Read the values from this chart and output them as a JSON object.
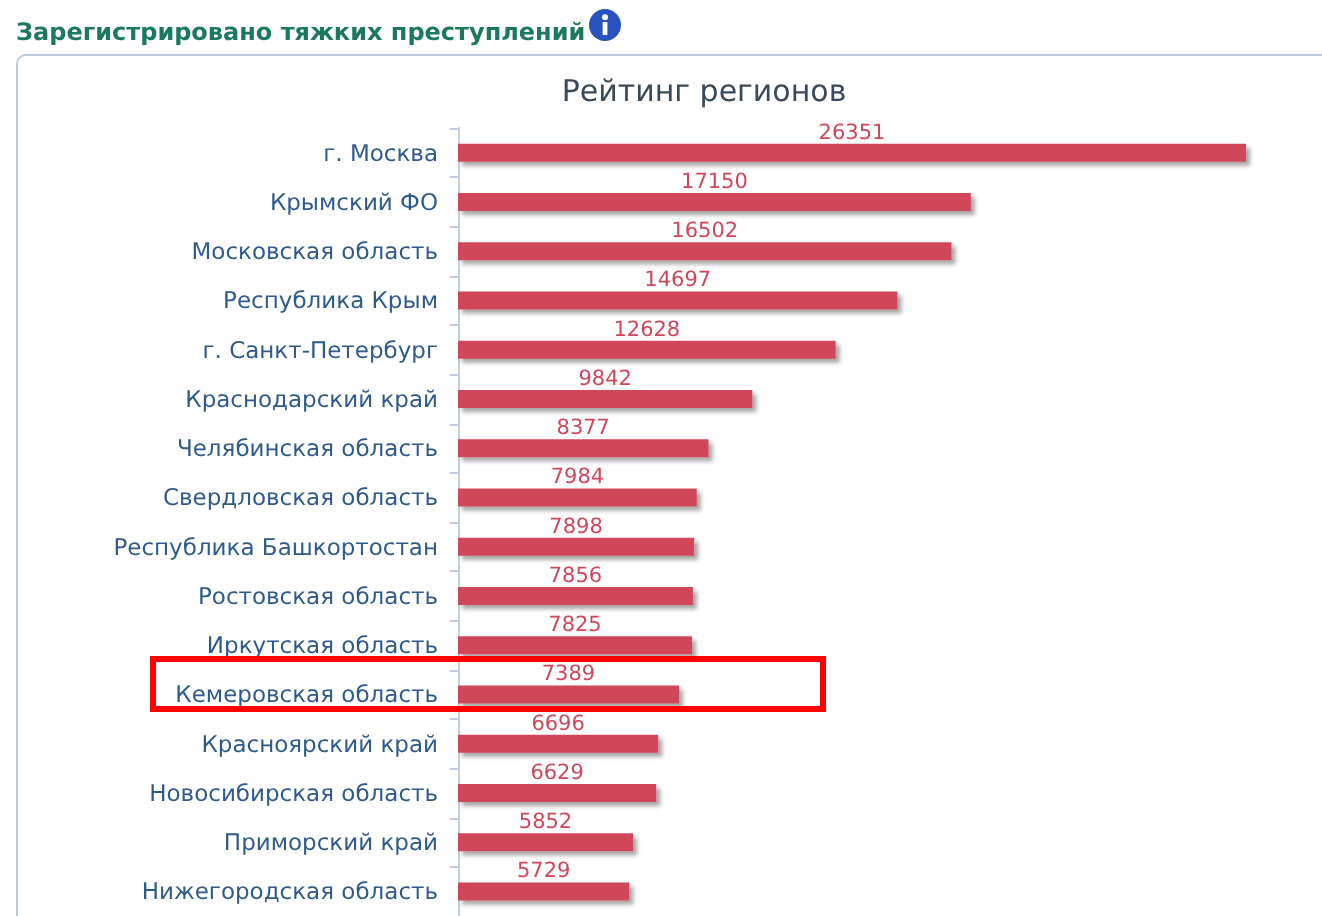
{
  "chart_data": {
    "type": "bar",
    "orientation": "horizontal",
    "title": "Зарегистрировано тяжких преступлений",
    "subtitle": "Рейтинг регионов",
    "categories": [
      "г. Москва",
      "Крымский ФО",
      "Московская область",
      "Республика Крым",
      "г. Санкт-Петербург",
      "Краснодарский край",
      "Челябинская область",
      "Свердловская область",
      "Республика Башкортостан",
      "Ростовская область",
      "Иркутская область",
      "Кемеровская область",
      "Красноярский край",
      "Новосибирская область",
      "Приморский край",
      "Нижегородская область"
    ],
    "values": [
      26351,
      17150,
      16502,
      14697,
      12628,
      9842,
      8377,
      7984,
      7898,
      7856,
      7825,
      7389,
      6696,
      6629,
      5852,
      5729
    ],
    "color": "#d0475a",
    "data_labels": true,
    "tick_labels": "y"
  }
}
